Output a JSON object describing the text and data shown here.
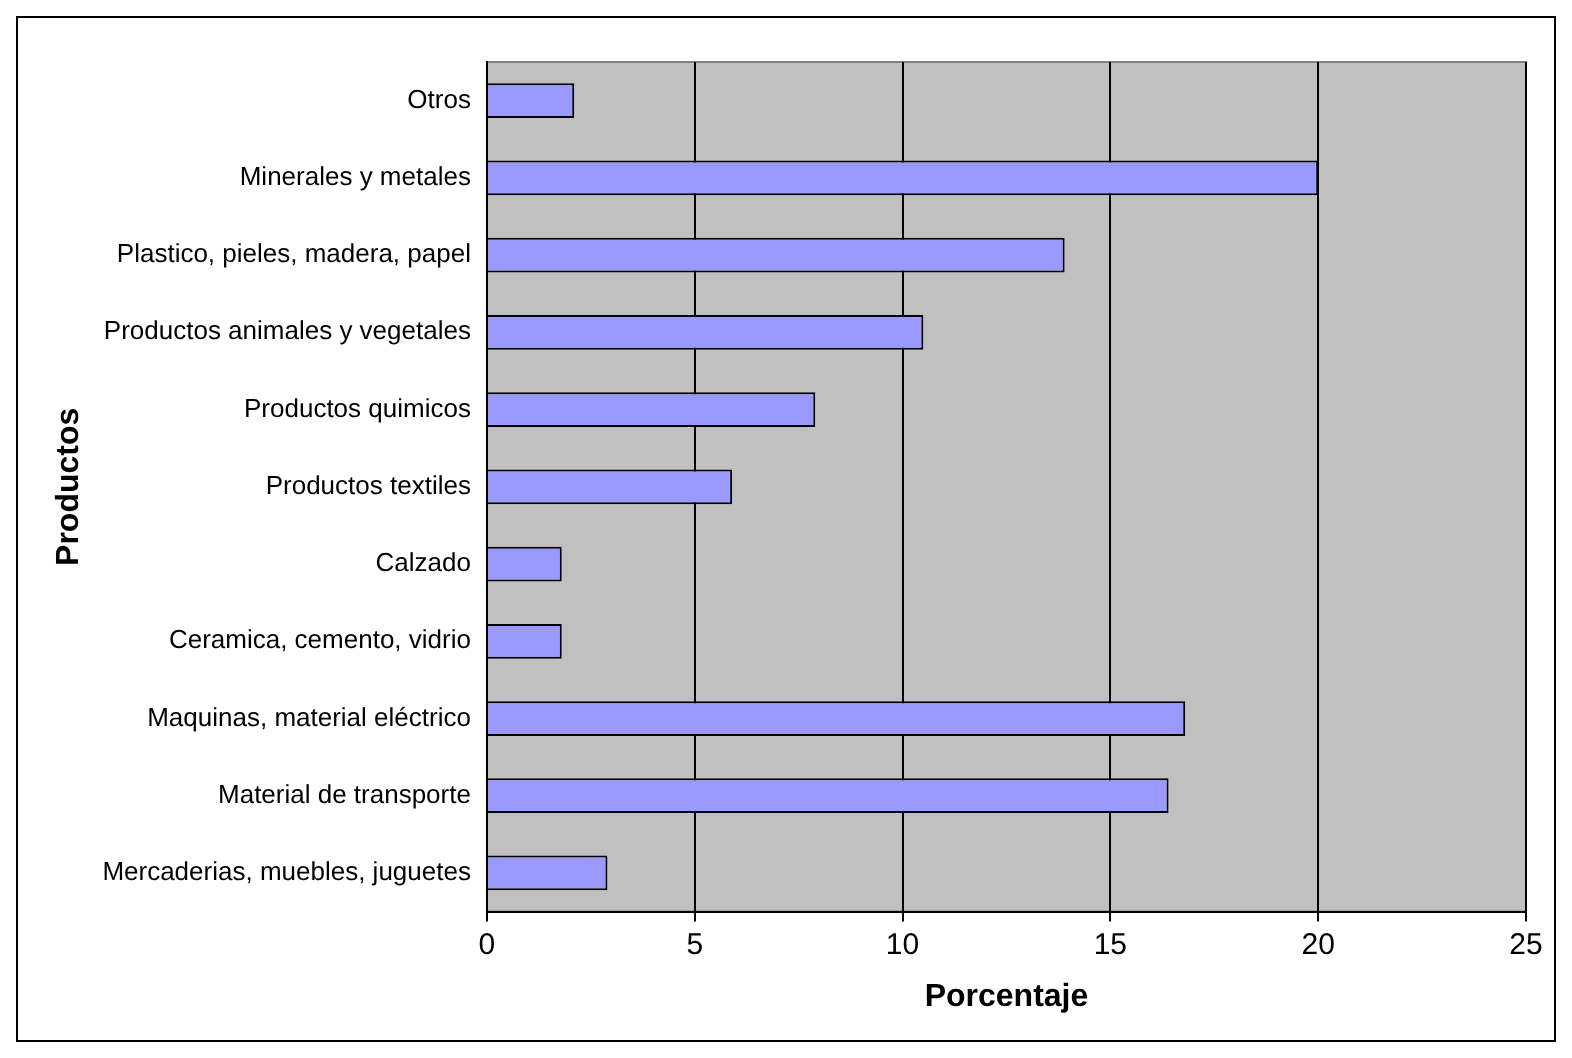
{
  "chart_data": {
    "type": "bar",
    "orientation": "horizontal",
    "xlabel": "Porcentaje",
    "ylabel": "Productos",
    "categories": [
      "Otros",
      "Minerales y metales",
      "Plastico, pieles, madera, papel",
      "Productos animales y vegetales",
      "Productos quimicos",
      "Productos textiles",
      "Calzado",
      "Ceramica, cemento, vidrio",
      "Maquinas, material eléctrico",
      "Material de transporte",
      "Mercaderias, muebles, juguetes"
    ],
    "values": [
      2.1,
      20.0,
      13.9,
      10.5,
      7.9,
      5.9,
      1.8,
      1.8,
      16.8,
      16.4,
      2.9
    ],
    "color": "#9999ff",
    "xlim": [
      0,
      25
    ],
    "xticks": [
      0,
      5,
      10,
      15,
      20,
      25
    ],
    "grid": "x",
    "legend": false
  }
}
